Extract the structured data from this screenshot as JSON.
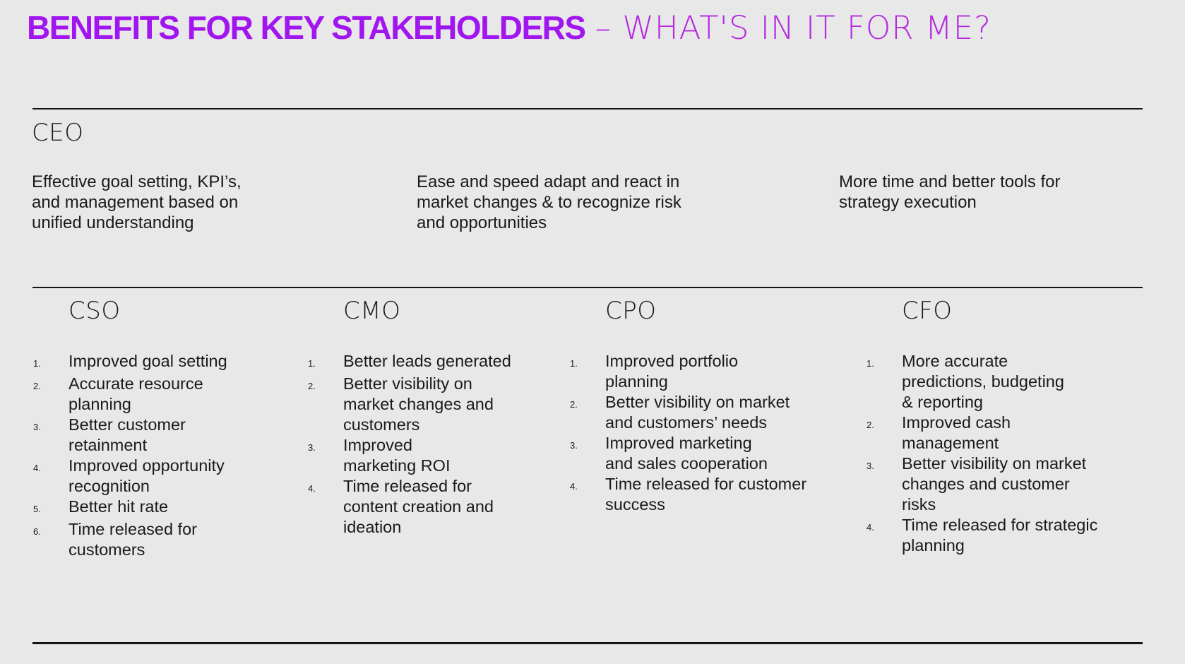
{
  "title": {
    "main": "BENEFITS FOR KEY STAKEHOLDERS",
    "sub": "– WHAT'S IN IT FOR ME?"
  },
  "colors": {
    "background": "#E8E8E8",
    "title_main": "#A116EF",
    "title_sub": "#B52BDF",
    "text": "#1A1A1A",
    "rule": "#141414"
  },
  "ceo": {
    "label": "CEO",
    "benefits": [
      "Effective goal setting, KPI’s,\nand management based on\nunified understanding",
      "Ease and speed adapt and react in\nmarket changes & to recognize risk\nand opportunities",
      "More time and better tools for\nstrategy execution"
    ]
  },
  "columns": [
    {
      "label": "CSO",
      "items": [
        "Improved goal setting",
        "Accurate resource\nplanning",
        "Better customer\nretainment",
        "Improved opportunity\nrecognition",
        "Better hit rate",
        "Time released for\ncustomers"
      ]
    },
    {
      "label": "CMO",
      "items": [
        "Better leads generated",
        "Better visibility on\nmarket changes and\ncustomers",
        "Improved\nmarketing ROI",
        "Time released for\ncontent creation and\nideation"
      ]
    },
    {
      "label": "CPO",
      "items": [
        "Improved portfolio\nplanning",
        "Better visibility on market\nand customers’ needs",
        "Improved marketing\nand sales cooperation",
        "Time released for customer\nsuccess"
      ]
    },
    {
      "label": "CFO",
      "items": [
        "More accurate\npredictions, budgeting\n& reporting",
        "Improved cash\nmanagement",
        "Better visibility on market\nchanges and customer\nrisks",
        "Time released for strategic\nplanning"
      ]
    }
  ]
}
